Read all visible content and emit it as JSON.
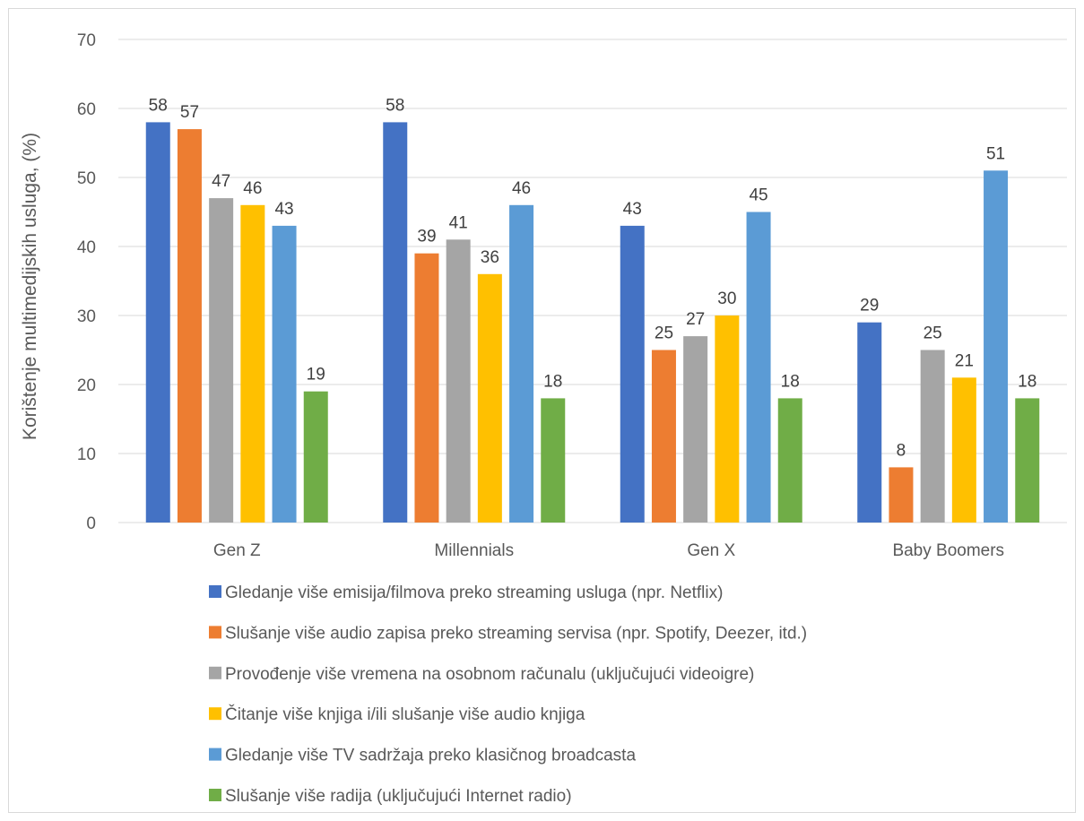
{
  "chart_data": {
    "type": "bar",
    "title": "",
    "xlabel": "",
    "ylabel": "Korištenje multimedijskih usluga, (%)",
    "ylim": [
      0,
      70
    ],
    "yticks": [
      0,
      10,
      20,
      30,
      40,
      50,
      60,
      70
    ],
    "grid": true,
    "legend_position": "bottom",
    "data_labels": true,
    "categories": [
      "Gen Z",
      "Millennials",
      "Gen X",
      "Baby Boomers"
    ],
    "series": [
      {
        "name": "Gledanje više emisija/filmova preko streaming usluga (npr. Netflix)",
        "color": "#4472C4",
        "values": [
          58,
          58,
          43,
          29
        ]
      },
      {
        "name": "Slušanje više audio zapisa preko streaming servisa (npr. Spotify, Deezer, itd.)",
        "color": "#ED7D31",
        "values": [
          57,
          39,
          25,
          8
        ]
      },
      {
        "name": "Provođenje više vremena na osobnom računalu (uključujući videoigre)",
        "color": "#A5A5A5",
        "values": [
          47,
          41,
          27,
          25
        ]
      },
      {
        "name": "Čitanje više knjiga i/ili slušanje više audio knjiga",
        "color": "#FFC000",
        "values": [
          46,
          36,
          30,
          21
        ]
      },
      {
        "name": "Gledanje više TV sadržaja preko klasičnog broadcasta",
        "color": "#5B9BD5",
        "values": [
          43,
          46,
          45,
          51
        ]
      },
      {
        "name": "Slušanje više radija (uključujući Internet radio)",
        "color": "#70AD47",
        "values": [
          19,
          18,
          18,
          18
        ]
      }
    ]
  }
}
